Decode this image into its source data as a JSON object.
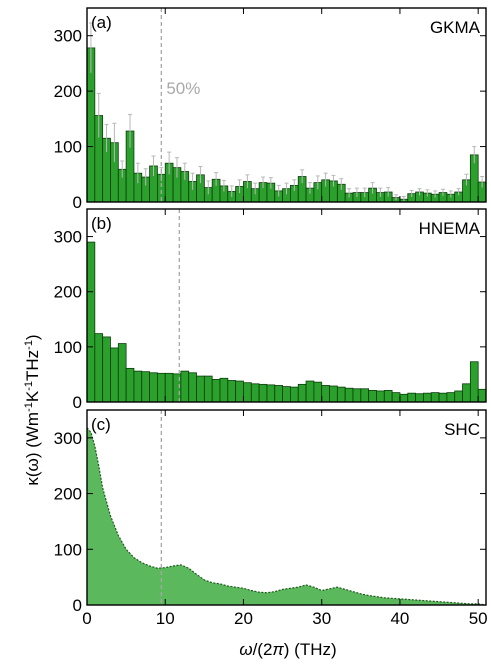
{
  "figure": {
    "ylabel_parts": [
      "κ(ω) (Wm",
      "-1",
      "K",
      "-1",
      "THz",
      "-1",
      ")"
    ],
    "xlabel_parts": [
      "ω",
      "/(2",
      "π",
      ") (THz)"
    ],
    "bar_color": "#2ca02c",
    "bar_edge_color": "#0a3d0a",
    "area_color": "#5cb85c",
    "error_color": "#b8b8b8",
    "reference_line_color": "#a8a8a8"
  },
  "chart_data": [
    {
      "type": "bar",
      "panel_label": "(a)",
      "method_label": "GKMA",
      "annotation": "50%",
      "reference_line_x": 9.5,
      "bar_width": 1,
      "xlim": [
        0,
        51
      ],
      "ylim": [
        0,
        350
      ],
      "x_ticks": [
        0,
        10,
        20,
        30,
        40,
        50
      ],
      "y_ticks": [
        0,
        100,
        200,
        300
      ],
      "x": [
        0.5,
        1.5,
        2.5,
        3.5,
        4.5,
        5.5,
        6.5,
        7.5,
        8.5,
        9.5,
        10.5,
        11.5,
        12.5,
        13.5,
        14.5,
        15.5,
        16.5,
        17.5,
        18.5,
        19.5,
        20.5,
        21.5,
        22.5,
        23.5,
        24.5,
        25.5,
        26.5,
        27.5,
        28.5,
        29.5,
        30.5,
        31.5,
        32.5,
        33.5,
        34.5,
        35.5,
        36.5,
        37.5,
        38.5,
        39.5,
        40.5,
        41.5,
        42.5,
        43.5,
        44.5,
        45.5,
        46.5,
        47.5,
        48.5,
        49.5,
        50.5
      ],
      "values": [
        278,
        156,
        115,
        107,
        59,
        128,
        52,
        45,
        65,
        50,
        70,
        62,
        55,
        37,
        49,
        26,
        41,
        29,
        19,
        28,
        37,
        24,
        35,
        34,
        20,
        24,
        30,
        46,
        25,
        35,
        40,
        38,
        32,
        16,
        17,
        17,
        25,
        17,
        18,
        8,
        5,
        15,
        18,
        16,
        14,
        17,
        14,
        18,
        40,
        85,
        36
      ],
      "errors": [
        45,
        40,
        25,
        35,
        15,
        30,
        18,
        15,
        18,
        12,
        20,
        18,
        15,
        15,
        15,
        12,
        12,
        10,
        10,
        12,
        12,
        10,
        10,
        10,
        10,
        10,
        10,
        12,
        10,
        12,
        12,
        10,
        10,
        8,
        8,
        8,
        10,
        8,
        8,
        5,
        5,
        6,
        6,
        6,
        6,
        6,
        6,
        6,
        10,
        15,
        10
      ]
    },
    {
      "type": "bar",
      "panel_label": "(b)",
      "method_label": "HNEMA",
      "reference_line_x": 11.8,
      "bar_width": 1,
      "xlim": [
        0,
        51
      ],
      "ylim": [
        0,
        350
      ],
      "x_ticks": [
        0,
        10,
        20,
        30,
        40,
        50
      ],
      "y_ticks": [
        0,
        100,
        200,
        300
      ],
      "x": [
        0.5,
        1.5,
        2.5,
        3.5,
        4.5,
        5.5,
        6.5,
        7.5,
        8.5,
        9.5,
        10.5,
        11.5,
        12.5,
        13.5,
        14.5,
        15.5,
        16.5,
        17.5,
        18.5,
        19.5,
        20.5,
        21.5,
        22.5,
        23.5,
        24.5,
        25.5,
        26.5,
        27.5,
        28.5,
        29.5,
        30.5,
        31.5,
        32.5,
        33.5,
        34.5,
        35.5,
        36.5,
        37.5,
        38.5,
        39.5,
        40.5,
        41.5,
        42.5,
        43.5,
        44.5,
        45.5,
        46.5,
        47.5,
        48.5,
        49.5,
        50.5
      ],
      "values": [
        290,
        124,
        118,
        98,
        106,
        61,
        56,
        55,
        53,
        52,
        52,
        51,
        56,
        53,
        47,
        47,
        41,
        43,
        39,
        38,
        35,
        33,
        32,
        31,
        30,
        28,
        27,
        32,
        38,
        36,
        30,
        29,
        27,
        25,
        24,
        24,
        21,
        20,
        21,
        17,
        14,
        16,
        15,
        16,
        17,
        16,
        17,
        20,
        33,
        73,
        23
      ]
    },
    {
      "type": "area",
      "panel_label": "(c)",
      "method_label": "SHC",
      "reference_line_x": 9.5,
      "xlim": [
        0,
        51
      ],
      "ylim": [
        0,
        350
      ],
      "x_ticks": [
        0,
        10,
        20,
        30,
        40,
        50
      ],
      "y_ticks": [
        0,
        100,
        200,
        300
      ],
      "x": [
        0,
        0.5,
        1,
        1.5,
        2,
        3,
        4,
        5,
        6,
        7,
        8,
        9,
        10,
        11,
        12,
        13,
        14,
        15,
        16,
        17,
        18,
        19,
        20,
        21,
        22,
        23,
        24,
        25,
        26,
        27,
        28,
        29,
        30,
        31,
        32,
        33,
        34,
        35,
        36,
        37,
        38,
        39,
        40,
        41,
        42,
        43,
        44,
        45,
        46,
        47,
        48,
        49,
        50,
        51
      ],
      "values": [
        318,
        310,
        285,
        250,
        210,
        160,
        125,
        100,
        85,
        76,
        70,
        66,
        67,
        70,
        72,
        66,
        55,
        45,
        40,
        38,
        34,
        32,
        30,
        26,
        23,
        22,
        24,
        28,
        30,
        32,
        36,
        32,
        26,
        29,
        32,
        28,
        24,
        20,
        17,
        15,
        13,
        12,
        11,
        10,
        9,
        8,
        7,
        6,
        5,
        4,
        3,
        2,
        2,
        0
      ]
    }
  ]
}
